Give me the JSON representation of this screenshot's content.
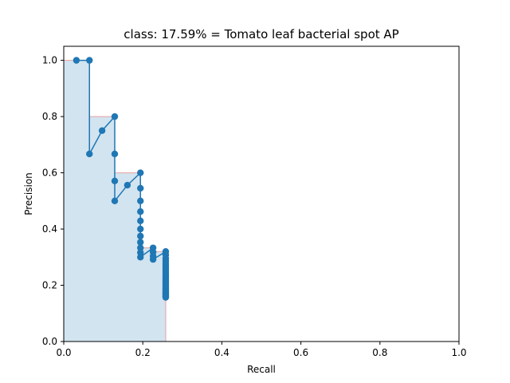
{
  "chart_data": {
    "type": "line",
    "title": "class: 17.59% = Tomato leaf bacterial spot AP",
    "xlabel": "Recall",
    "ylabel": "Precision",
    "xlim": [
      0,
      1
    ],
    "ylim": [
      0,
      1.05
    ],
    "grid": false,
    "xticks": [
      "0.0",
      "0.2",
      "0.4",
      "0.6",
      "0.8",
      "1.0"
    ],
    "yticks": [
      "0.0",
      "0.2",
      "0.4",
      "0.6",
      "0.8",
      "1.0"
    ],
    "colors": {
      "series": "#1f77b4",
      "area_fill": "#1f77b4",
      "area_edge": "#e8a0a0"
    },
    "series": [
      {
        "values": [
          [
            0.032,
            1.0
          ],
          [
            0.065,
            1.0
          ],
          [
            0.065,
            0.667
          ],
          [
            0.097,
            0.75
          ],
          [
            0.129,
            0.8
          ],
          [
            0.129,
            0.667
          ],
          [
            0.129,
            0.571
          ],
          [
            0.129,
            0.5
          ],
          [
            0.161,
            0.556
          ],
          [
            0.194,
            0.6
          ],
          [
            0.194,
            0.545
          ],
          [
            0.194,
            0.5
          ],
          [
            0.194,
            0.462
          ],
          [
            0.194,
            0.429
          ],
          [
            0.194,
            0.4
          ],
          [
            0.194,
            0.375
          ],
          [
            0.194,
            0.353
          ],
          [
            0.194,
            0.333
          ],
          [
            0.194,
            0.316
          ],
          [
            0.194,
            0.3
          ],
          [
            0.226,
            0.333
          ],
          [
            0.226,
            0.318
          ],
          [
            0.226,
            0.304
          ],
          [
            0.226,
            0.292
          ],
          [
            0.258,
            0.32
          ],
          [
            0.258,
            0.308
          ],
          [
            0.258,
            0.296
          ],
          [
            0.258,
            0.286
          ],
          [
            0.258,
            0.276
          ],
          [
            0.258,
            0.267
          ],
          [
            0.258,
            0.258
          ],
          [
            0.258,
            0.25
          ],
          [
            0.258,
            0.242
          ],
          [
            0.258,
            0.235
          ],
          [
            0.258,
            0.229
          ],
          [
            0.258,
            0.222
          ],
          [
            0.258,
            0.216
          ],
          [
            0.258,
            0.211
          ],
          [
            0.258,
            0.205
          ],
          [
            0.258,
            0.2
          ],
          [
            0.258,
            0.195
          ],
          [
            0.258,
            0.19
          ],
          [
            0.258,
            0.186
          ],
          [
            0.258,
            0.182
          ],
          [
            0.258,
            0.178
          ],
          [
            0.258,
            0.174
          ],
          [
            0.258,
            0.17
          ],
          [
            0.258,
            0.167
          ],
          [
            0.258,
            0.163
          ],
          [
            0.258,
            0.16
          ],
          [
            0.258,
            0.157
          ]
        ]
      }
    ],
    "interpolated_area": [
      [
        0.0,
        1.0
      ],
      [
        0.065,
        1.0
      ],
      [
        0.065,
        0.8
      ],
      [
        0.129,
        0.8
      ],
      [
        0.129,
        0.6
      ],
      [
        0.194,
        0.6
      ],
      [
        0.194,
        0.333
      ],
      [
        0.226,
        0.333
      ],
      [
        0.226,
        0.32
      ],
      [
        0.258,
        0.32
      ],
      [
        0.258,
        0.0
      ],
      [
        0.0,
        0.0
      ]
    ]
  }
}
